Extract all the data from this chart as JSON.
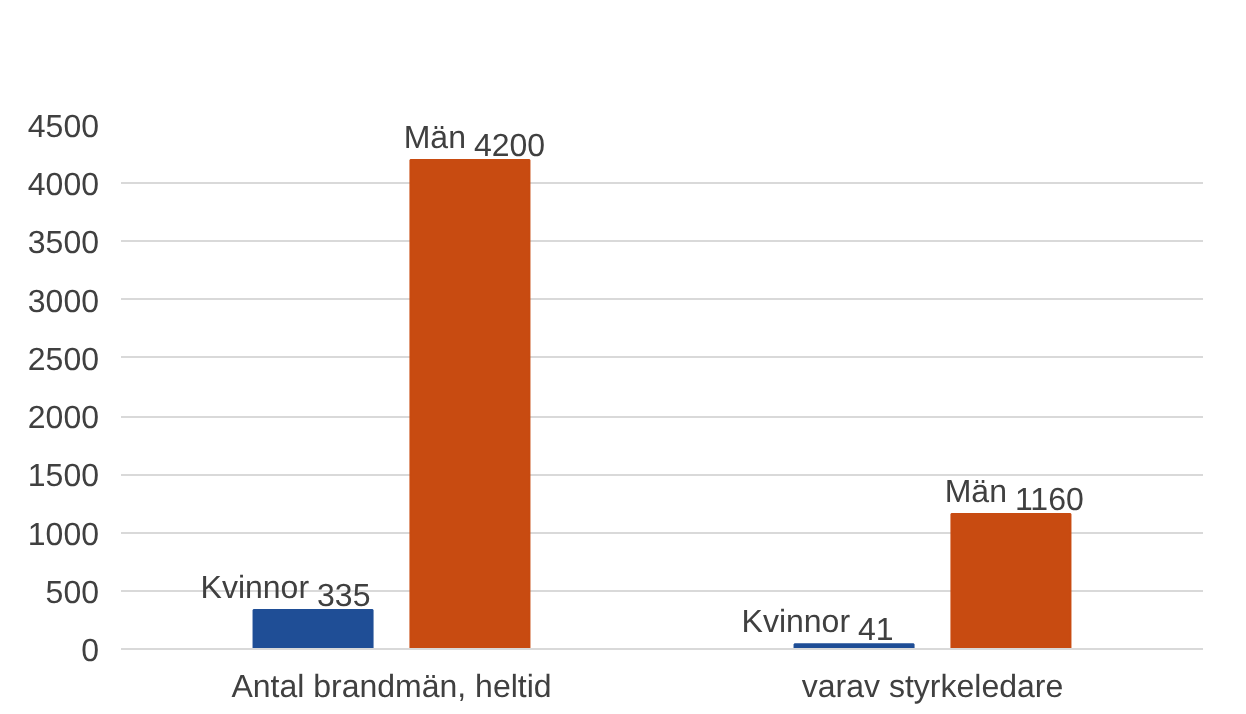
{
  "chart_data": {
    "type": "bar",
    "categories": [
      "Antal brandmän, heltid",
      "varav styrkeledare"
    ],
    "series": [
      {
        "name": "Kvinnor",
        "color": "#1f4e96",
        "values": [
          335,
          41
        ]
      },
      {
        "name": "Män",
        "color": "#c84b11",
        "values": [
          4200,
          1160
        ]
      }
    ],
    "ylim": [
      0,
      4500
    ],
    "yticks": [
      0,
      500,
      1000,
      1500,
      2000,
      2500,
      3000,
      3500,
      4000,
      4500
    ],
    "grid": "y",
    "data_labels": true
  }
}
